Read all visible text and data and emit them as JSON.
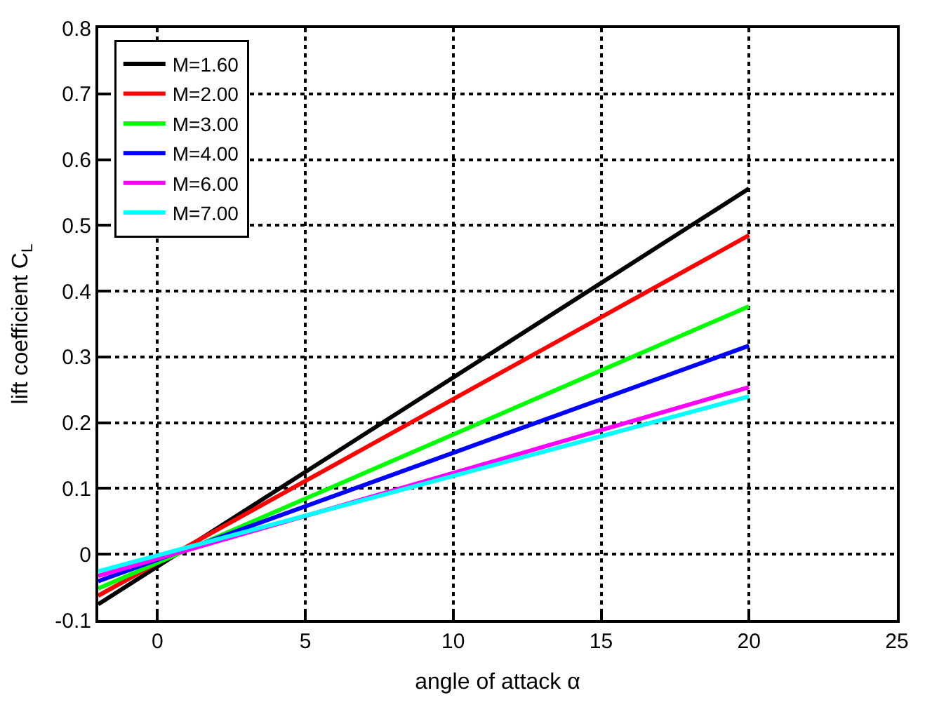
{
  "chart_data": {
    "type": "line",
    "xlabel": "angle of attack α",
    "ylabel": "lift coefficient C$_{L}$",
    "x": [
      -2,
      20
    ],
    "xlim": [
      -2,
      25
    ],
    "xticks": [
      0,
      5,
      10,
      15,
      20,
      25
    ],
    "ylim": [
      -0.1,
      0.8
    ],
    "yticks": [
      -0.1,
      0,
      0.1,
      0.2,
      0.3,
      0.4,
      0.5,
      0.6,
      0.7,
      0.8
    ],
    "grid": true,
    "legend": "top left",
    "line_style": "solid",
    "marker": "none",
    "series": [
      {
        "name": "M=1.60",
        "color": "#000000",
        "values": [
          -0.076,
          0.556
        ]
      },
      {
        "name": "M=2.00",
        "color": "#ff0000",
        "values": [
          -0.063,
          0.485
        ]
      },
      {
        "name": "M=3.00",
        "color": "#00ff00",
        "values": [
          -0.052,
          0.377
        ]
      },
      {
        "name": "M=4.00",
        "color": "#0000ff",
        "values": [
          -0.041,
          0.317
        ]
      },
      {
        "name": "M=6.00",
        "color": "#ff00ff",
        "values": [
          -0.033,
          0.254
        ]
      },
      {
        "name": "M=7.00",
        "color": "#00ffff",
        "values": [
          -0.026,
          0.24
        ]
      }
    ]
  }
}
